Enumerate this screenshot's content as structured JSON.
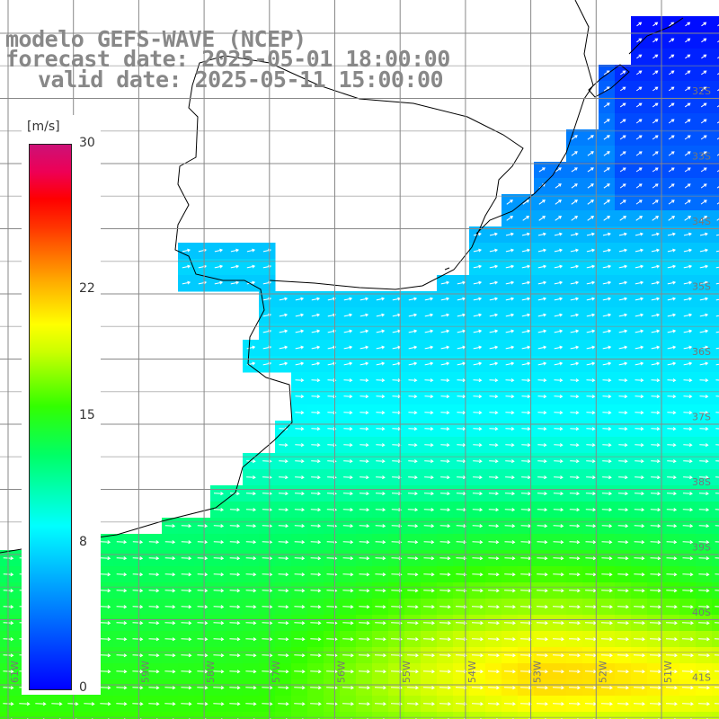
{
  "title": {
    "line1": "modelo GEFS-WAVE (NCEP)",
    "line2": "forecast date: 2025-05-01 18:00:00",
    "line3": "valid date: 2025-05-11 15:00:00"
  },
  "colorbar": {
    "unit": "[m/s]",
    "min": 0,
    "max": 30,
    "ticks": [
      {
        "label": "30",
        "value": 30
      },
      {
        "label": "22",
        "value": 22
      },
      {
        "label": "15",
        "value": 15
      },
      {
        "label": "8",
        "value": 8
      },
      {
        "label": "0",
        "value": 0
      }
    ]
  },
  "lon_labels": [
    "61W",
    "60W",
    "59W",
    "58W",
    "57W",
    "56W",
    "55W",
    "54W",
    "53W",
    "52W",
    "51W"
  ],
  "lat_labels": [
    "32S",
    "33S",
    "34S",
    "35S",
    "36S",
    "37S",
    "38S",
    "39S",
    "40S",
    "41S"
  ],
  "colors": {
    "grid": "#888888",
    "coast": "#000000",
    "title": "#888888",
    "arrow": "#ffffff"
  }
}
